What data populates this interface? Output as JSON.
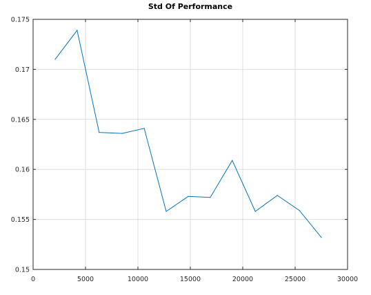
{
  "chart_data": {
    "type": "line",
    "title": "Std Of Performance",
    "xlabel": "",
    "ylabel": "",
    "xlim": [
      0,
      30000
    ],
    "ylim": [
      0.15,
      0.175
    ],
    "x_ticks": [
      "0",
      "5000",
      "10000",
      "15000",
      "20000",
      "25000",
      "30000"
    ],
    "y_ticks": [
      "0.15",
      "0.155",
      "0.16",
      "0.165",
      "0.17",
      "0.175"
    ],
    "grid": true,
    "series": [
      {
        "color": "#0072bd",
        "x": [
          2100,
          4200,
          6300,
          8500,
          10600,
          12700,
          14800,
          16900,
          19000,
          21200,
          23300,
          25400,
          27500
        ],
        "y": [
          0.171,
          0.1739,
          0.1637,
          0.1636,
          0.1641,
          0.1558,
          0.1573,
          0.1572,
          0.1609,
          0.1558,
          0.1574,
          0.1559,
          0.1532
        ]
      }
    ]
  }
}
